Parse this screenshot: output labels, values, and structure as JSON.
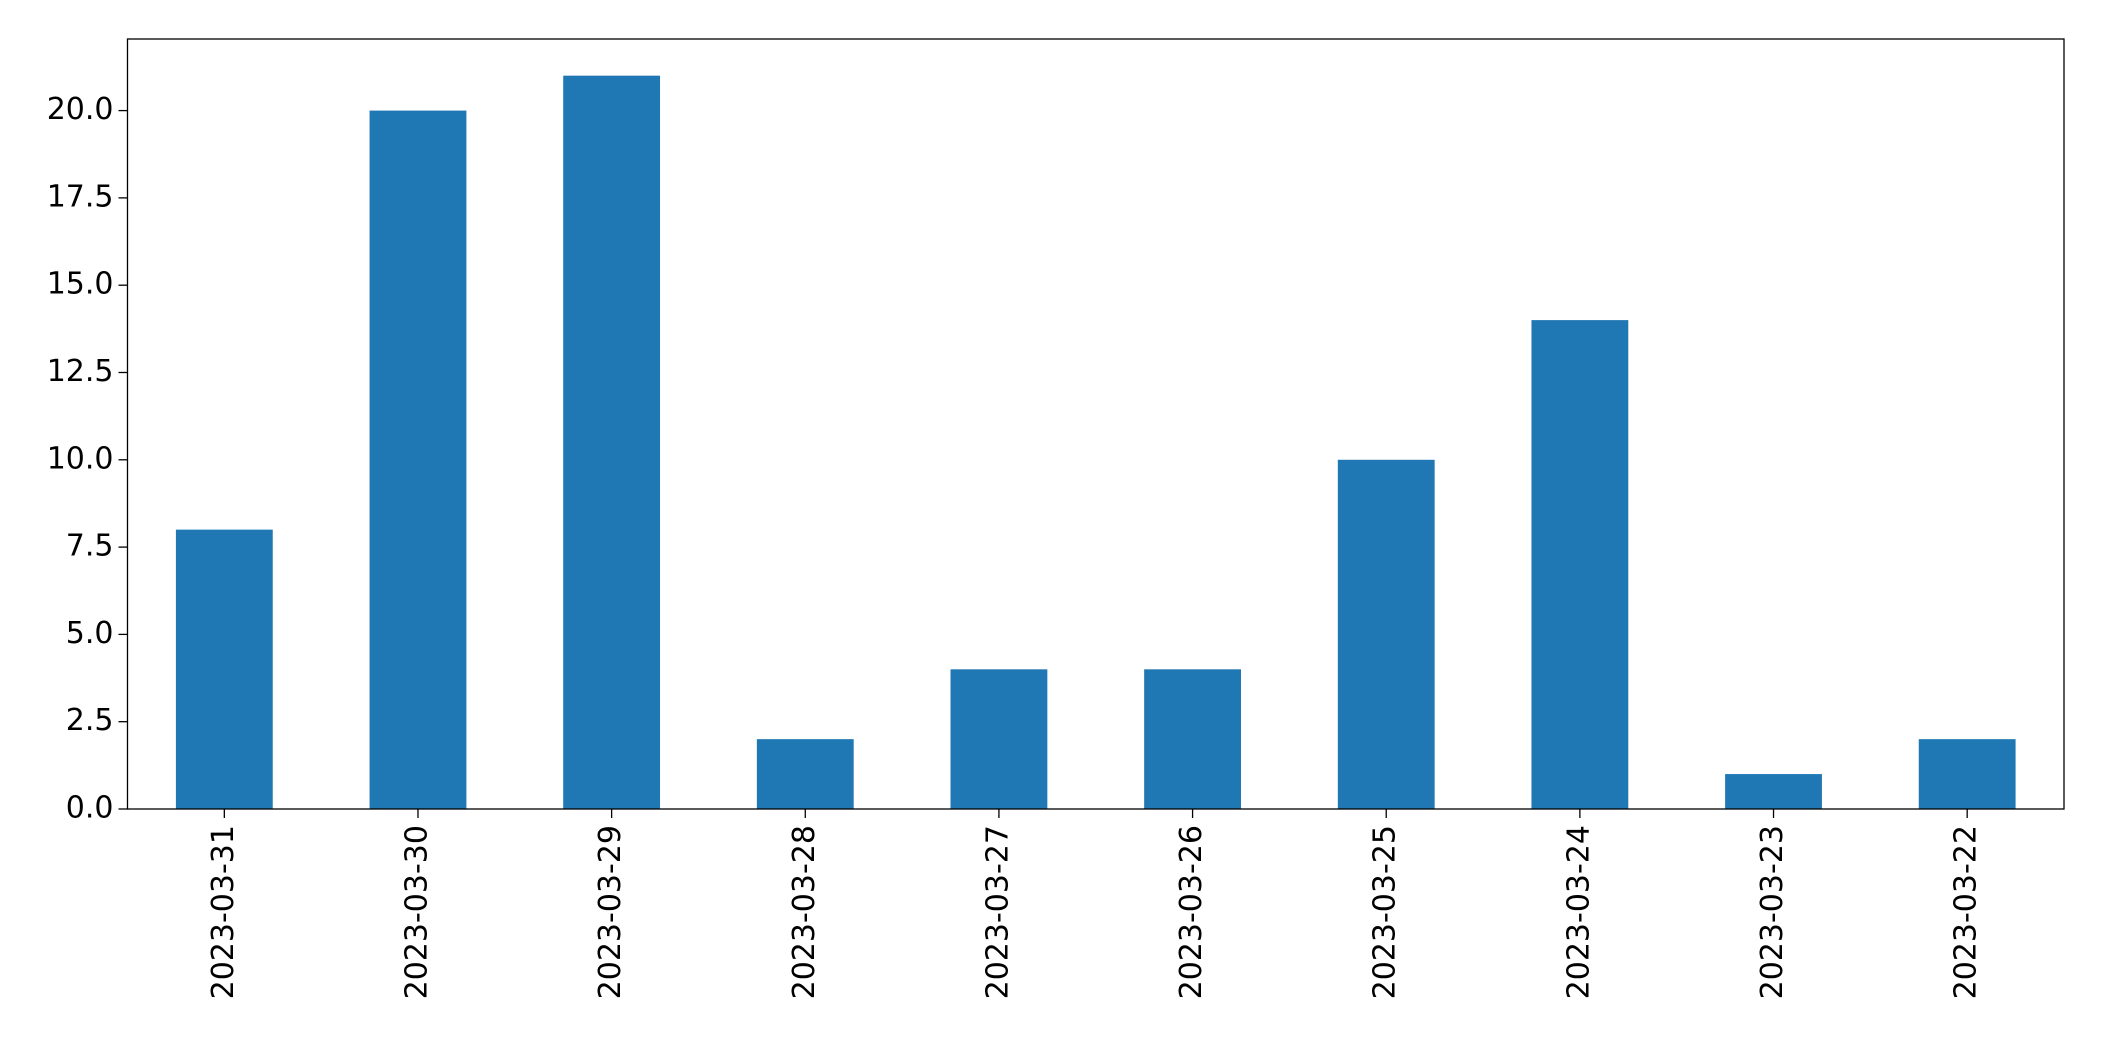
{
  "chart_data": {
    "type": "bar",
    "categories": [
      "2023-03-31",
      "2023-03-30",
      "2023-03-29",
      "2023-03-28",
      "2023-03-27",
      "2023-03-26",
      "2023-03-25",
      "2023-03-24",
      "2023-03-23",
      "2023-03-22"
    ],
    "values": [
      8,
      20,
      21,
      2,
      4,
      4,
      10,
      14,
      1,
      2
    ],
    "color": "#1f77b4",
    "ylim": [
      0,
      22.05
    ],
    "yticks": [
      {
        "value": 0,
        "label": "0.0"
      },
      2.5,
      {
        "value": 5,
        "label": "5.0"
      },
      7.5,
      {
        "value": 10,
        "label": "10.0"
      },
      12.5,
      {
        "value": 15,
        "label": "15.0"
      },
      17.5,
      {
        "value": 20,
        "label": "20.0"
      }
    ],
    "grid": false
  }
}
